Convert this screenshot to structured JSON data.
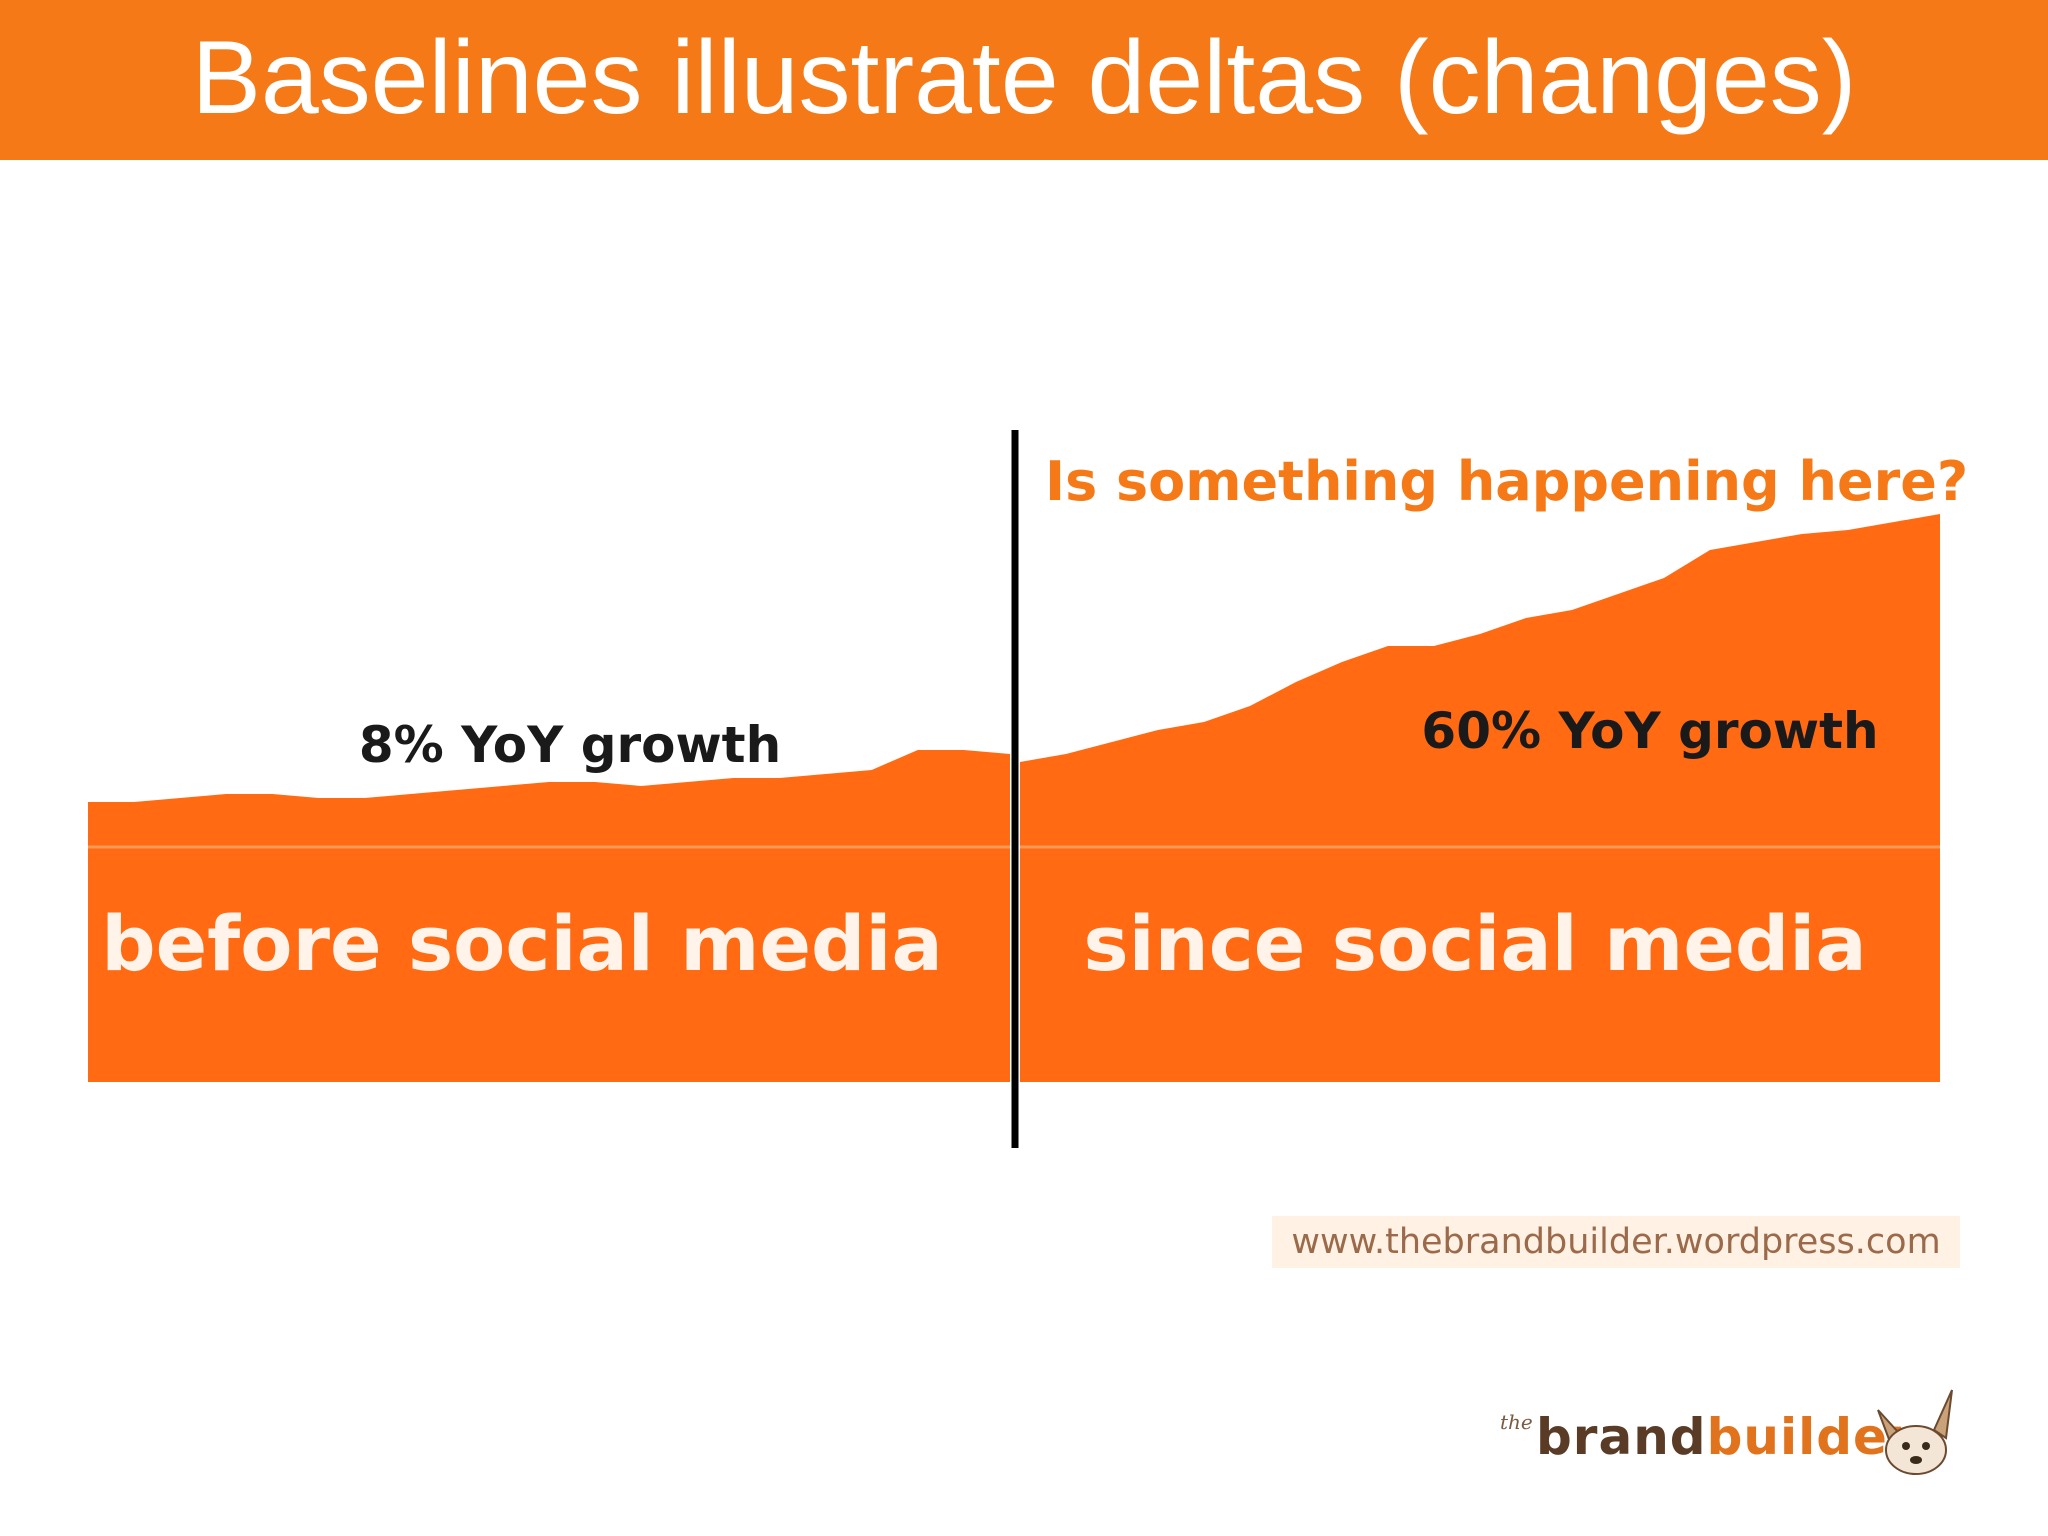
{
  "title": "Baselines illustrate deltas (changes)",
  "colors": {
    "accent": "#F57A17",
    "area": "#FF6A13",
    "divider": "#000000",
    "label": "#1a1a1a"
  },
  "chart_data": {
    "type": "area",
    "regions": [
      {
        "label": "before social media",
        "growth_label": "8% YoY growth",
        "y": [
          10,
          10,
          11,
          12,
          12,
          11,
          11,
          12,
          13,
          14,
          15,
          15,
          14,
          15,
          16,
          16,
          17,
          18,
          23,
          23,
          22
        ]
      },
      {
        "label": "since social media",
        "growth_label": "60% YoY growth",
        "y": [
          20,
          22,
          25,
          28,
          30,
          34,
          40,
          45,
          49,
          49,
          52,
          56,
          58,
          62,
          66,
          73,
          75,
          77,
          78,
          80,
          82
        ]
      }
    ],
    "annotation": "Is something happening here?",
    "grid": false,
    "legend": "none"
  },
  "footer": {
    "url": "www.thebrandbuilder.wordpress.com",
    "logo": {
      "small": "the",
      "brand": "brand",
      "builder": "builder",
      "icon": "dog-icon"
    }
  }
}
